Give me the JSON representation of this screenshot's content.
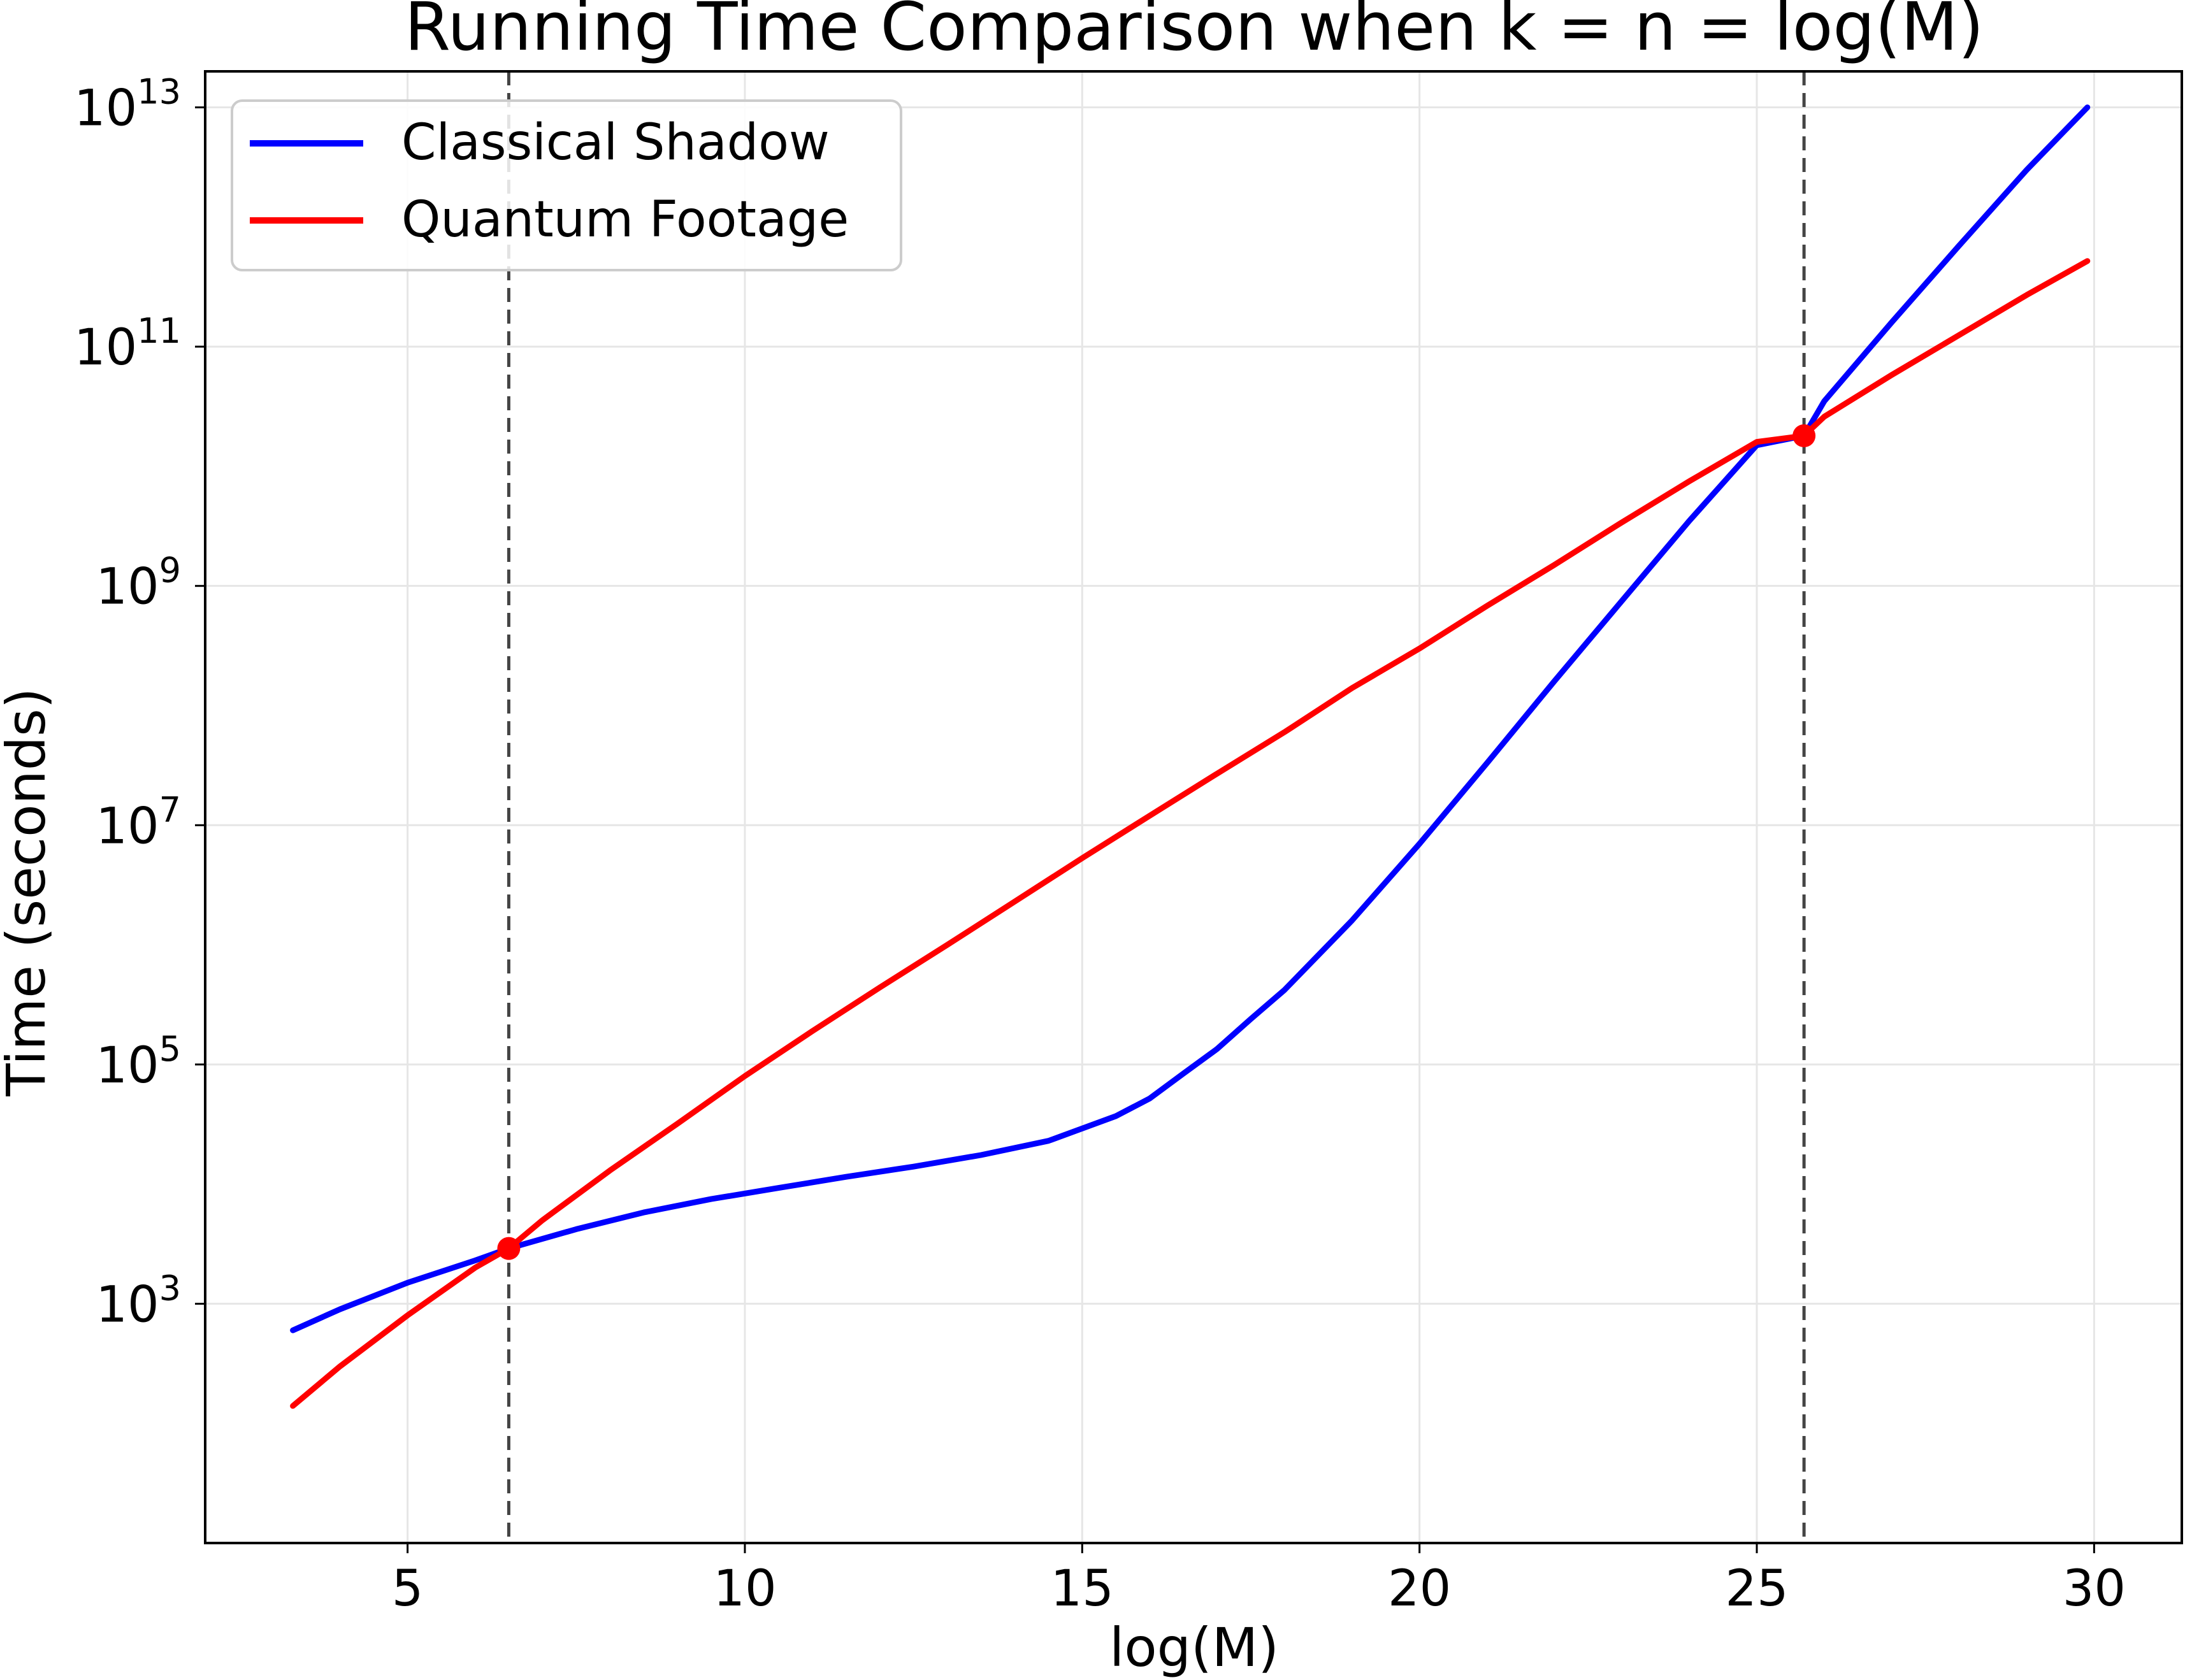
{
  "chart_data": {
    "type": "line",
    "title": "Running Time Comparison when k = n = log(M)",
    "xlabel": "log(M)",
    "ylabel": "Time (seconds)",
    "xlim": [
      2,
      31.3
    ],
    "ylim": [
      10,
      20000000000000
    ],
    "yscale": "log",
    "grid": true,
    "legend_position": "top-left",
    "xticks": [
      5,
      10,
      15,
      20,
      25,
      30
    ],
    "yticks": [
      {
        "value": 1000,
        "base": "10",
        "exp": "3"
      },
      {
        "value": 100000,
        "base": "10",
        "exp": "5"
      },
      {
        "value": 10000000,
        "base": "10",
        "exp": "7"
      },
      {
        "value": 1000000000,
        "base": "10",
        "exp": "9"
      },
      {
        "value": 100000000000,
        "base": "10",
        "exp": "11"
      },
      {
        "value": 10000000000000,
        "base": "10",
        "exp": "13"
      }
    ],
    "series": [
      {
        "name": "Classical Shadow",
        "color": "#0000ff",
        "x": [
          3.3,
          4.0,
          5.0,
          6.0,
          6.5,
          7.5,
          8.5,
          9.5,
          10.5,
          11.5,
          12.5,
          13.5,
          14.5,
          15.5,
          16.0,
          16.5,
          17.0,
          17.5,
          18.0,
          19.0,
          20.0,
          21.0,
          22.0,
          23.0,
          24.0,
          25.0,
          25.7,
          26.0,
          27.0,
          28.0,
          29.0,
          29.9
        ],
        "y": [
          600,
          900,
          1500,
          2300,
          2900,
          4200,
          5800,
          7500,
          9300,
          11500,
          14000,
          17500,
          23000,
          37000,
          52000,
          84000,
          135000,
          240000,
          420000,
          1600000,
          7000000,
          33000000,
          160000000,
          750000000,
          3500000000,
          15000000000,
          18000000000,
          35000000000,
          160000000000,
          700000000000,
          3000000000000,
          10000000000000
        ]
      },
      {
        "name": "Quantum Footage",
        "color": "#ff0000",
        "x": [
          3.3,
          4.0,
          5.0,
          6.0,
          6.5,
          7.0,
          8.0,
          9.0,
          10.0,
          11.0,
          12.0,
          13.0,
          14.0,
          15.0,
          16.0,
          17.0,
          18.0,
          19.0,
          20.0,
          21.0,
          22.0,
          23.0,
          24.0,
          25.0,
          25.7,
          26.0,
          27.0,
          28.0,
          29.0,
          29.9
        ],
        "y": [
          140,
          300,
          800,
          2000,
          2900,
          5000,
          13000,
          32000,
          80000,
          190000,
          440000,
          1000000,
          2300000,
          5300000,
          12000000,
          27000000,
          60000000,
          140000000,
          300000000,
          680000000,
          1500000000,
          3400000000,
          7500000000,
          16000000000,
          18000000000,
          26000000000,
          58000000000,
          125000000000,
          270000000000,
          520000000000
        ]
      }
    ],
    "intersections": [
      {
        "x": 6.5,
        "y": 2900,
        "color": "#ff0000"
      },
      {
        "x": 25.7,
        "y": 18000000000,
        "color": "#ff0000"
      }
    ],
    "reference_lines": [
      {
        "orientation": "vertical",
        "x": 6.5,
        "style": "dashed",
        "color": "#444444"
      },
      {
        "orientation": "vertical",
        "x": 25.7,
        "style": "dashed",
        "color": "#444444"
      }
    ]
  }
}
